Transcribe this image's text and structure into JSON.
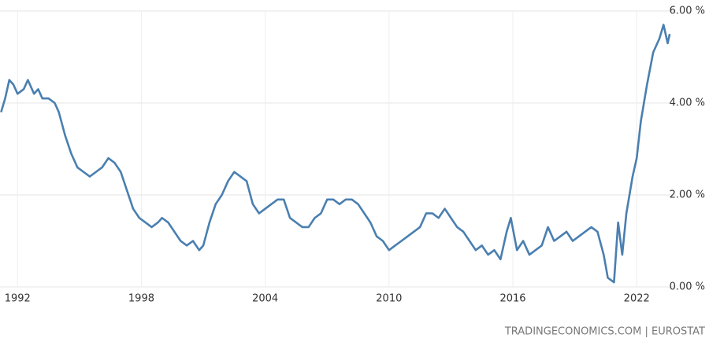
{
  "chart_data": {
    "type": "line",
    "source": "TRADINGECONOMICS.COM | EUROSTAT",
    "x": [
      1991.2,
      1991.4,
      1991.6,
      1991.8,
      1992.0,
      1992.3,
      1992.5,
      1992.8,
      1993.0,
      1993.2,
      1993.5,
      1993.8,
      1994.0,
      1994.3,
      1994.6,
      1994.9,
      1995.2,
      1995.5,
      1995.8,
      1996.1,
      1996.4,
      1996.7,
      1997.0,
      1997.3,
      1997.6,
      1997.9,
      1998.2,
      1998.5,
      1998.8,
      1999.0,
      1999.3,
      1999.6,
      1999.9,
      2000.2,
      2000.5,
      2000.8,
      2001.0,
      2001.3,
      2001.6,
      2001.9,
      2002.2,
      2002.5,
      2002.8,
      2003.1,
      2003.4,
      2003.7,
      2004.0,
      2004.3,
      2004.6,
      2004.9,
      2005.2,
      2005.5,
      2005.8,
      2006.1,
      2006.4,
      2006.7,
      2007.0,
      2007.3,
      2007.6,
      2007.9,
      2008.2,
      2008.5,
      2008.8,
      2009.1,
      2009.4,
      2009.7,
      2010.0,
      2010.3,
      2010.6,
      2010.9,
      2011.2,
      2011.5,
      2011.8,
      2012.1,
      2012.4,
      2012.7,
      2013.0,
      2013.3,
      2013.6,
      2013.9,
      2014.2,
      2014.5,
      2014.8,
      2015.1,
      2015.4,
      2015.7,
      2015.9,
      2016.2,
      2016.5,
      2016.8,
      2017.1,
      2017.4,
      2017.7,
      2018.0,
      2018.3,
      2018.6,
      2018.9,
      2019.2,
      2019.5,
      2019.8,
      2020.1,
      2020.4,
      2020.6,
      2020.9,
      2021.1,
      2021.3,
      2021.5,
      2021.8,
      2022.0,
      2022.2,
      2022.5,
      2022.8,
      2023.1,
      2023.3,
      2023.5,
      2023.6
    ],
    "series": [
      {
        "color": "#4a7fb0",
        "values": [
          3.8,
          4.1,
          4.5,
          4.4,
          4.2,
          4.3,
          4.5,
          4.2,
          4.3,
          4.1,
          4.1,
          4.0,
          3.8,
          3.3,
          2.9,
          2.6,
          2.5,
          2.4,
          2.5,
          2.6,
          2.8,
          2.7,
          2.5,
          2.1,
          1.7,
          1.5,
          1.4,
          1.3,
          1.4,
          1.5,
          1.4,
          1.2,
          1.0,
          0.9,
          1.0,
          0.8,
          0.9,
          1.4,
          1.8,
          2.0,
          2.3,
          2.5,
          2.4,
          2.3,
          1.8,
          1.6,
          1.7,
          1.8,
          1.9,
          1.9,
          1.5,
          1.4,
          1.3,
          1.3,
          1.5,
          1.6,
          1.9,
          1.9,
          1.8,
          1.9,
          1.9,
          1.8,
          1.6,
          1.4,
          1.1,
          1.0,
          0.8,
          0.9,
          1.0,
          1.1,
          1.2,
          1.3,
          1.6,
          1.6,
          1.5,
          1.7,
          1.5,
          1.3,
          1.2,
          1.0,
          0.8,
          0.9,
          0.7,
          0.8,
          0.6,
          1.2,
          1.5,
          0.8,
          1.0,
          0.7,
          0.8,
          0.9,
          1.3,
          1.0,
          1.1,
          1.2,
          1.0,
          1.1,
          1.2,
          1.3,
          1.2,
          0.7,
          0.2,
          0.1,
          1.4,
          0.7,
          1.6,
          2.4,
          2.8,
          3.6,
          4.4,
          5.1,
          5.4,
          5.7,
          5.3,
          5.5
        ]
      }
    ],
    "xlim": [
      1991.15,
      2023.9
    ],
    "xticks": [
      1992,
      1998,
      2004,
      2010,
      2016,
      2022
    ],
    "ylim": [
      0,
      6
    ],
    "yticks": [
      {
        "value": 0,
        "label": "0.00 %"
      },
      {
        "value": 2,
        "label": "2.00 %"
      },
      {
        "value": 4,
        "label": "4.00 %"
      },
      {
        "value": 6,
        "label": "6.00 %"
      }
    ],
    "grid": true
  }
}
